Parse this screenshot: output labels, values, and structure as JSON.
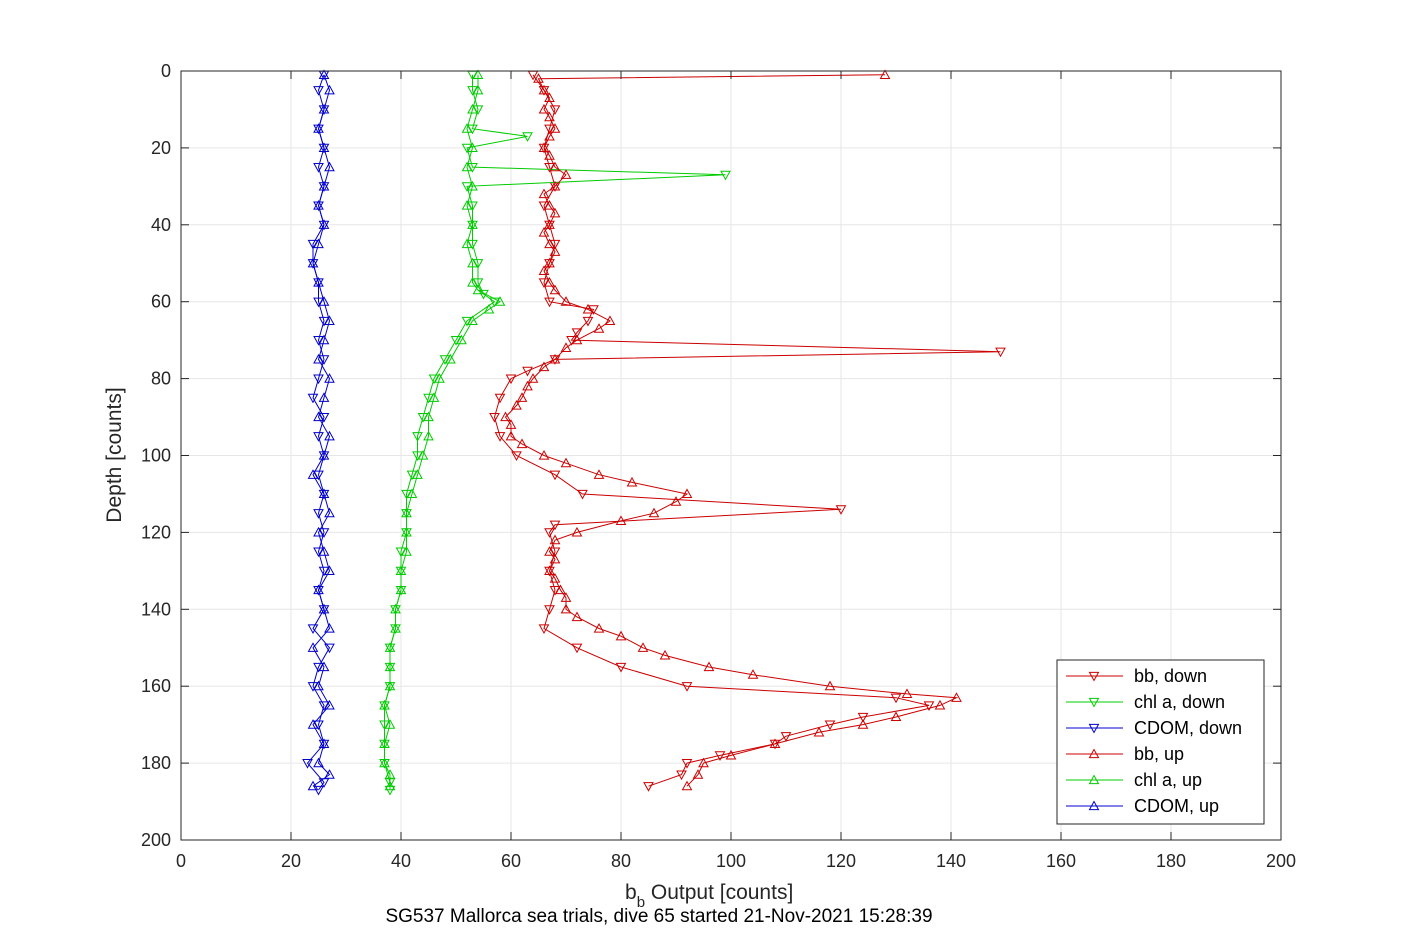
{
  "chart_data": {
    "type": "line",
    "title": "SG537 Mallorca sea trials, dive 65 started 21-Nov-2021 15:28:39",
    "xlabel_main": "b",
    "xlabel_sub": "b",
    "xlabel_rest": " Output [counts]",
    "ylabel": "Depth [counts]",
    "xlim": [
      0,
      200
    ],
    "ylim": [
      0,
      200
    ],
    "y_reversed": true,
    "grid": true,
    "legend_position": "bottom-right",
    "xticks": [
      "0",
      "20",
      "40",
      "60",
      "80",
      "100",
      "120",
      "140",
      "160",
      "180",
      "200"
    ],
    "yticks": [
      "0",
      "20",
      "40",
      "60",
      "80",
      "100",
      "120",
      "140",
      "160",
      "180",
      "200"
    ],
    "series": [
      {
        "name": "bb, down",
        "color": "#cc0000",
        "marker": "down",
        "legend": "bb, down",
        "depth": [
          1,
          5,
          10,
          15,
          20,
          25,
          30,
          35,
          40,
          45,
          50,
          55,
          60,
          62,
          65,
          68,
          70,
          73,
          75,
          78,
          80,
          85,
          90,
          95,
          100,
          105,
          110,
          114,
          118,
          120,
          125,
          130,
          135,
          140,
          145,
          150,
          155,
          160,
          163,
          165,
          168,
          170,
          173,
          175,
          178,
          180,
          183,
          186
        ],
        "values": [
          64,
          66,
          68,
          67,
          66,
          67,
          68,
          66,
          67,
          68,
          67,
          66,
          67,
          75,
          74,
          72,
          71,
          149,
          68,
          63,
          60,
          58,
          57,
          58,
          61,
          68,
          73,
          120,
          68,
          67,
          68,
          67,
          68,
          67,
          66,
          72,
          80,
          92,
          130,
          136,
          124,
          118,
          110,
          108,
          98,
          92,
          91,
          85
        ]
      },
      {
        "name": "chl a, down",
        "color": "#00cc00",
        "marker": "down",
        "legend": "chl a, down",
        "depth": [
          1,
          5,
          10,
          15,
          17,
          20,
          25,
          27,
          30,
          35,
          40,
          45,
          50,
          55,
          58,
          60,
          65,
          70,
          75,
          80,
          85,
          90,
          95,
          100,
          105,
          110,
          115,
          120,
          125,
          130,
          135,
          140,
          145,
          150,
          155,
          160,
          165,
          170,
          175,
          180,
          185,
          187
        ],
        "values": [
          53,
          53,
          54,
          53,
          63,
          52,
          53,
          99,
          52,
          53,
          53,
          53,
          54,
          54,
          55,
          57,
          52,
          50,
          48,
          46,
          45,
          44,
          43,
          43,
          42,
          41,
          41,
          41,
          40,
          40,
          40,
          39,
          39,
          38,
          38,
          38,
          37,
          37,
          37,
          37,
          38,
          38
        ]
      },
      {
        "name": "CDOM, down",
        "color": "#0000cc",
        "marker": "down",
        "legend": "CDOM, down",
        "depth": [
          1,
          5,
          10,
          15,
          20,
          25,
          30,
          35,
          40,
          45,
          50,
          55,
          60,
          65,
          70,
          75,
          80,
          85,
          90,
          95,
          100,
          105,
          110,
          115,
          120,
          125,
          130,
          135,
          140,
          145,
          150,
          155,
          160,
          165,
          170,
          175,
          180,
          185,
          187
        ],
        "values": [
          26,
          25,
          26,
          25,
          26,
          25,
          26,
          25,
          26,
          24,
          24,
          25,
          25,
          26,
          25,
          26,
          25,
          24,
          26,
          25,
          26,
          25,
          26,
          25,
          26,
          25,
          26,
          25,
          26,
          24,
          27,
          25,
          24,
          26,
          25,
          26,
          23,
          26,
          25
        ]
      },
      {
        "name": "bb, up",
        "color": "#cc0000",
        "marker": "up",
        "legend": "bb, up",
        "depth": [
          186,
          183,
          180,
          178,
          175,
          172,
          170,
          168,
          165,
          163,
          162,
          160,
          157,
          155,
          152,
          150,
          147,
          145,
          142,
          140,
          137,
          135,
          132,
          130,
          127,
          125,
          122,
          120,
          117,
          115,
          112,
          110,
          107,
          105,
          102,
          100,
          97,
          95,
          92,
          90,
          87,
          85,
          82,
          80,
          77,
          75,
          72,
          70,
          67,
          65,
          62,
          60,
          57,
          55,
          52,
          50,
          47,
          45,
          42,
          40,
          37,
          35,
          32,
          30,
          27,
          25,
          22,
          20,
          17,
          15,
          12,
          10,
          7,
          5,
          2,
          1
        ],
        "values": [
          92,
          94,
          95,
          100,
          108,
          116,
          124,
          130,
          138,
          141,
          132,
          118,
          104,
          96,
          88,
          84,
          80,
          76,
          72,
          70,
          70,
          69,
          68,
          67,
          68,
          67,
          68,
          72,
          80,
          86,
          90,
          92,
          82,
          76,
          70,
          66,
          62,
          60,
          60,
          59,
          61,
          62,
          63,
          64,
          66,
          68,
          70,
          72,
          76,
          78,
          74,
          70,
          68,
          67,
          66,
          67,
          68,
          67,
          66,
          67,
          68,
          67,
          66,
          68,
          70,
          68,
          67,
          66,
          67,
          68,
          67,
          66,
          67,
          66,
          65,
          128
        ]
      },
      {
        "name": "chl a, up",
        "color": "#00cc00",
        "marker": "up",
        "legend": "chl a, up",
        "depth": [
          186,
          183,
          180,
          175,
          170,
          165,
          160,
          155,
          150,
          145,
          140,
          135,
          130,
          125,
          120,
          115,
          110,
          105,
          100,
          95,
          90,
          85,
          80,
          75,
          70,
          65,
          62,
          60,
          57,
          55,
          50,
          45,
          40,
          35,
          30,
          25,
          20,
          15,
          10,
          5,
          1
        ],
        "values": [
          38,
          38,
          37,
          37,
          38,
          37,
          38,
          38,
          38,
          39,
          39,
          40,
          40,
          41,
          41,
          41,
          42,
          43,
          44,
          45,
          45,
          46,
          47,
          49,
          51,
          53,
          56,
          58,
          54,
          53,
          53,
          52,
          53,
          52,
          53,
          52,
          53,
          52,
          53,
          54,
          54
        ]
      },
      {
        "name": "CDOM, up",
        "color": "#0000cc",
        "marker": "up",
        "legend": "CDOM, up",
        "depth": [
          186,
          183,
          180,
          175,
          170,
          165,
          160,
          155,
          150,
          145,
          140,
          135,
          130,
          125,
          120,
          115,
          110,
          105,
          100,
          95,
          90,
          85,
          80,
          75,
          70,
          65,
          60,
          55,
          50,
          45,
          40,
          35,
          30,
          25,
          20,
          15,
          10,
          5,
          1
        ],
        "values": [
          24,
          27,
          25,
          26,
          24,
          27,
          25,
          26,
          24,
          27,
          26,
          25,
          27,
          26,
          25,
          27,
          26,
          24,
          26,
          27,
          25,
          26,
          27,
          25,
          26,
          27,
          26,
          25,
          24,
          25,
          26,
          25,
          26,
          27,
          26,
          25,
          26,
          27,
          26
        ]
      }
    ]
  }
}
